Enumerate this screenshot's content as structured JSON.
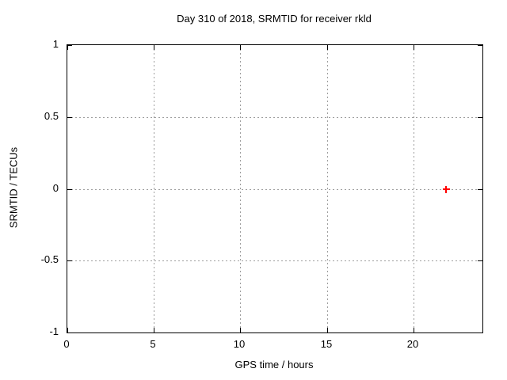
{
  "chart_data": {
    "type": "scatter",
    "title": "Day 310 of 2018, SRMTID for receiver rkld",
    "xlabel": "GPS time / hours",
    "ylabel": "SRMTID / TECUs",
    "xlim": [
      0,
      24
    ],
    "ylim": [
      -1,
      1
    ],
    "xticks": [
      0,
      5,
      10,
      15,
      20
    ],
    "yticks": [
      1,
      0.5,
      0,
      -0.5,
      -1
    ],
    "grid": true,
    "legend_position": "none",
    "series": [
      {
        "name": "SRMTID",
        "marker": "plus",
        "color": "#ff0000",
        "points": [
          [
            21.9,
            0.0
          ]
        ]
      }
    ]
  },
  "colors": {
    "background": "#ffffff",
    "axis": "#000000",
    "grid": "#9e9e9e",
    "text": "#000000",
    "marker": "#ff0000"
  }
}
